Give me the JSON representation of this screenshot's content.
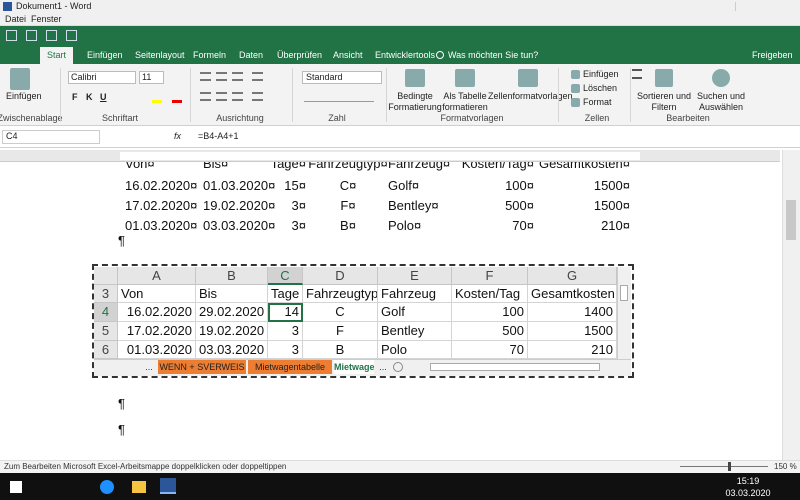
{
  "window": {
    "title": "Dokument1 - Word",
    "menu": [
      "Datei",
      "Fenster"
    ]
  },
  "ribbon": {
    "tabs": [
      "Start",
      "Einfügen",
      "Seitenlayout",
      "Formeln",
      "Daten",
      "Überprüfen",
      "Ansicht",
      "Entwicklertools"
    ],
    "tell_me": "Was möchten Sie tun?",
    "share": "Freigeben",
    "paste": "Einfügen",
    "font_name": "Calibri",
    "font_size": "11",
    "font_buttons": [
      "F",
      "K",
      "U"
    ],
    "number_format": "Standard",
    "style_buttons": [
      [
        "Bedingte",
        "Formatierung"
      ],
      [
        "Als Tabelle",
        "formatieren"
      ],
      [
        "Zellenformatvorlagen"
      ]
    ],
    "cell_buttons": [
      "Einfügen",
      "Löschen",
      "Format"
    ],
    "edit_buttons": [
      [
        "Sortieren und",
        "Filtern"
      ],
      [
        "Suchen und",
        "Auswählen"
      ]
    ],
    "groups": [
      "Zwischenablage",
      "Schriftart",
      "Ausrichtung",
      "Zahl",
      "Formatvorlagen",
      "Zellen",
      "Bearbeiten"
    ]
  },
  "formula_bar": {
    "name_box": "C4",
    "fx": "fx",
    "formula": "=B4-A4+1"
  },
  "word_table": {
    "header": [
      "Von¤",
      "Bis¤",
      "Tage¤",
      "Fahrzeugtyp¤",
      "Fahrzeug¤",
      "Kosten/Tag¤",
      "Gesamtkosten¤"
    ],
    "rows": [
      [
        "16.02.2020¤",
        "01.03.2020¤",
        "15¤",
        "C¤",
        "Golf¤",
        "100¤",
        "1500¤"
      ],
      [
        "17.02.2020¤",
        "19.02.2020¤",
        "3¤",
        "F¤",
        "Bentley¤",
        "500¤",
        "1500¤"
      ],
      [
        "01.03.2020¤",
        "03.03.2020¤",
        "3¤",
        "B¤",
        "Polo¤",
        "70¤",
        "210¤"
      ]
    ]
  },
  "pilcrows": [
    "¶",
    "¶",
    "¶"
  ],
  "excel": {
    "columns": [
      "A",
      "B",
      "C",
      "D",
      "E",
      "F",
      "G"
    ],
    "row_numbers": [
      "3",
      "4",
      "5",
      "6"
    ],
    "cells": [
      [
        "Von",
        "Bis",
        "Tage",
        "Fahrzeugtyp",
        "Fahrzeug",
        "Kosten/Tag",
        "Gesamtkosten"
      ],
      [
        "16.02.2020",
        "29.02.2020",
        "14",
        "C",
        "Golf",
        "100",
        "1400"
      ],
      [
        "17.02.2020",
        "19.02.2020",
        "3",
        "F",
        "Bentley",
        "500",
        "1500"
      ],
      [
        "01.03.2020",
        "03.03.2020",
        "3",
        "B",
        "Polo",
        "70",
        "210"
      ]
    ],
    "sheet_tabs": [
      "...",
      "WENN + SVERWEIS",
      "Mietwagentabelle",
      "Mietwage",
      "..."
    ]
  },
  "status_bar": {
    "message": "Zum Bearbeiten Microsoft Excel-Arbeitsmappe doppelklicken oder doppeltippen",
    "zoom": "150 %"
  },
  "taskbar": {
    "time": "15:19",
    "date": "03.03.2020"
  }
}
